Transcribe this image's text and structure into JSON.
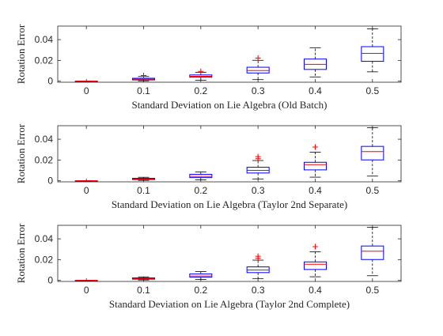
{
  "chart_data": [
    {
      "type": "box",
      "xlabel": "Standard Deviation on Lie Algebra (Old Batch)",
      "ylabel": "Rotation Error",
      "categories": [
        "0",
        "0.1",
        "0.2",
        "0.3",
        "0.4",
        "0.5"
      ],
      "y_ticks": [
        "0",
        "0.02",
        "0.04"
      ],
      "ylim": [
        -0.001,
        0.053
      ],
      "grid": false,
      "box_color": "#0000ff",
      "median_color": "#ff0000",
      "outlier_color": "#ff0000",
      "whisker_color": "#000000",
      "boxes": [
        {
          "min": 0,
          "q1": 0,
          "median": 0,
          "q3": 0,
          "max": 0,
          "outliers": []
        },
        {
          "min": 0.0003,
          "q1": 0.0012,
          "median": 0.0019,
          "q3": 0.0028,
          "max": 0.0045,
          "outliers": [
            0.0055
          ]
        },
        {
          "min": 0.0009,
          "q1": 0.0038,
          "median": 0.0047,
          "q3": 0.006,
          "max": 0.0085,
          "outliers": [
            0.0095
          ]
        },
        {
          "min": 0.0015,
          "q1": 0.0079,
          "median": 0.0102,
          "q3": 0.0134,
          "max": 0.0201,
          "outliers": [
            0.0222
          ]
        },
        {
          "min": 0.0041,
          "q1": 0.0113,
          "median": 0.0162,
          "q3": 0.0213,
          "max": 0.0322,
          "outliers": []
        },
        {
          "min": 0.009,
          "q1": 0.0191,
          "median": 0.0268,
          "q3": 0.0332,
          "max": 0.0503,
          "outliers": []
        }
      ]
    },
    {
      "type": "box",
      "xlabel": "Standard Deviation on Lie Algebra (Taylor 2nd Separate)",
      "ylabel": "Rotation Error",
      "categories": [
        "0",
        "0.1",
        "0.2",
        "0.3",
        "0.4",
        "0.5"
      ],
      "y_ticks": [
        "0",
        "0.02",
        "0.04"
      ],
      "ylim": [
        -0.001,
        0.053
      ],
      "grid": false,
      "box_color": "#0000ff",
      "median_color": "#ff0000",
      "outlier_color": "#ff0000",
      "whisker_color": "#000000",
      "boxes": [
        {
          "min": 0,
          "q1": 0,
          "median": 0,
          "q3": 0,
          "max": 0,
          "outliers": []
        },
        {
          "min": 0.0004,
          "q1": 0.0012,
          "median": 0.0018,
          "q3": 0.0024,
          "max": 0.0034,
          "outliers": []
        },
        {
          "min": 0.0009,
          "q1": 0.0031,
          "median": 0.0042,
          "q3": 0.0062,
          "max": 0.0085,
          "outliers": []
        },
        {
          "min": 0.0018,
          "q1": 0.0075,
          "median": 0.01,
          "q3": 0.013,
          "max": 0.0195,
          "outliers": [
            0.0212,
            0.0232
          ]
        },
        {
          "min": 0.0035,
          "q1": 0.0105,
          "median": 0.0155,
          "q3": 0.0178,
          "max": 0.0275,
          "outliers": [
            0.0325
          ]
        },
        {
          "min": 0.0045,
          "q1": 0.0201,
          "median": 0.0281,
          "q3": 0.0331,
          "max": 0.051,
          "outliers": []
        }
      ]
    },
    {
      "type": "box",
      "xlabel": "Standard Deviation on Lie Algebra (Taylor 2nd Complete)",
      "ylabel": "Rotation Error",
      "categories": [
        "0",
        "0.1",
        "0.2",
        "0.3",
        "0.4",
        "0.5"
      ],
      "y_ticks": [
        "0",
        "0.02",
        "0.04"
      ],
      "ylim": [
        -0.001,
        0.053
      ],
      "grid": false,
      "box_color": "#0000ff",
      "median_color": "#ff0000",
      "outlier_color": "#ff0000",
      "whisker_color": "#000000",
      "boxes": [
        {
          "min": 0,
          "q1": 0,
          "median": 0,
          "q3": 0,
          "max": 0,
          "outliers": []
        },
        {
          "min": 0.0004,
          "q1": 0.0012,
          "median": 0.0018,
          "q3": 0.0024,
          "max": 0.0034,
          "outliers": []
        },
        {
          "min": 0.0009,
          "q1": 0.0031,
          "median": 0.0042,
          "q3": 0.0062,
          "max": 0.0085,
          "outliers": []
        },
        {
          "min": 0.0018,
          "q1": 0.0075,
          "median": 0.01,
          "q3": 0.013,
          "max": 0.0195,
          "outliers": [
            0.0212,
            0.0232
          ]
        },
        {
          "min": 0.0035,
          "q1": 0.0105,
          "median": 0.0155,
          "q3": 0.0178,
          "max": 0.0275,
          "outliers": [
            0.0325
          ]
        },
        {
          "min": 0.0045,
          "q1": 0.0201,
          "median": 0.0281,
          "q3": 0.0331,
          "max": 0.051,
          "outliers": []
        }
      ]
    }
  ]
}
